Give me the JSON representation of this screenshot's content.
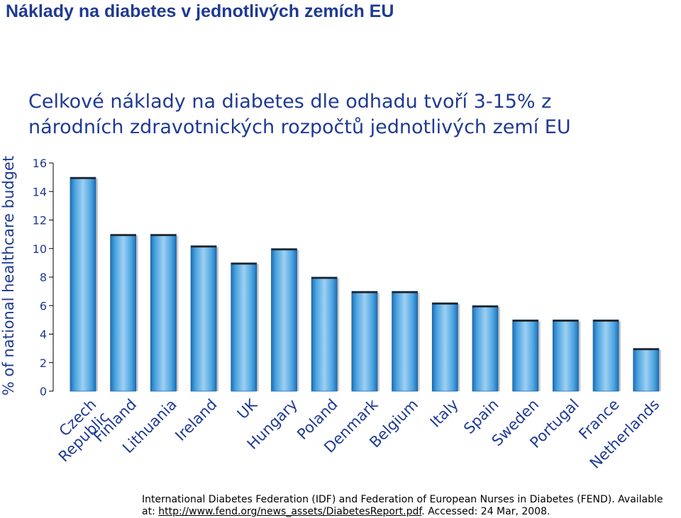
{
  "title": "Náklady na diabetes v jednotlivých zemích EU",
  "subtitle": {
    "line1": "Celkové náklady na diabetes dle odhadu tvoří 3-15% z",
    "line2": "národních zdravotnických rozpočtů jednotlivých zemí EU"
  },
  "source": {
    "line1": "International Diabetes Federation (IDF) and Federation of European Nurses in Diabetes (FEND). Available",
    "prefix": "at: ",
    "link": "http://www.fend.org/news_assets/DiabetesReport.pdf",
    "suffix": ". Accessed: 24 Mar, 2008."
  },
  "colors": {
    "text": "#1f3a93",
    "bar_light": "#9ed0f2",
    "bar_mid": "#4aa3e0",
    "bar_dark": "#1d6fb8",
    "axis": "#000000",
    "tick_labels": "#1f3a93"
  },
  "chart_data": {
    "type": "bar",
    "categories": [
      "Czech Republic",
      "Finland",
      "Lithuania",
      "Ireland",
      "UK",
      "Hungary",
      "Poland",
      "Denmark",
      "Belgium",
      "Italy",
      "Spain",
      "Sweden",
      "Portugal",
      "France",
      "Netherlands"
    ],
    "category_lines": [
      [
        "Czech",
        "Republic"
      ],
      [
        "Finland"
      ],
      [
        "Lithuania"
      ],
      [
        "Ireland"
      ],
      [
        "UK"
      ],
      [
        "Hungary"
      ],
      [
        "Poland"
      ],
      [
        "Denmark"
      ],
      [
        "Belgium"
      ],
      [
        "Italy"
      ],
      [
        "Spain"
      ],
      [
        "Sweden"
      ],
      [
        "Portugal"
      ],
      [
        "France"
      ],
      [
        "Netherlands"
      ]
    ],
    "values": [
      15,
      11,
      11,
      10.2,
      9,
      10,
      8,
      7,
      7,
      6.2,
      6,
      5,
      5,
      5,
      3
    ],
    "ylabel": "% of national healthcare budget",
    "xlabel": "",
    "ylim": [
      0,
      16
    ],
    "yticks": [
      "0",
      "2",
      "4",
      "6",
      "8",
      "10",
      "12",
      "14",
      "16"
    ],
    "grid": false,
    "legend": "none"
  }
}
